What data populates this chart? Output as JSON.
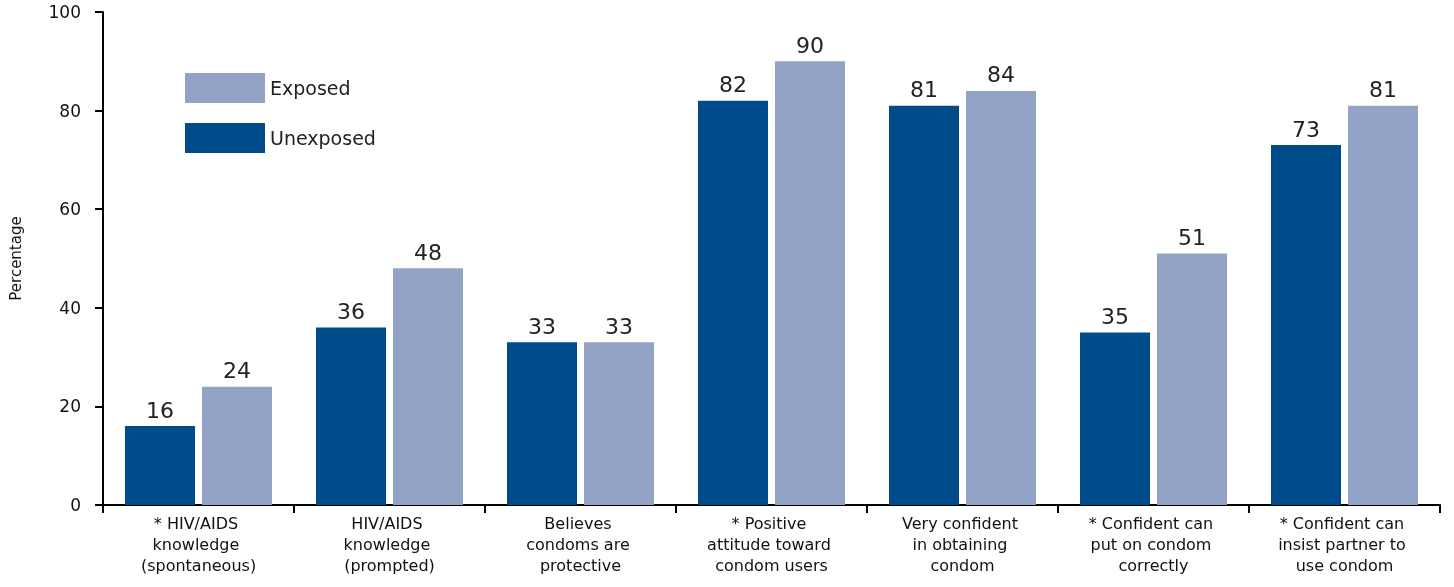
{
  "chart_data": {
    "type": "bar",
    "ylabel": "Percentage",
    "categories": [
      "* HIV/AIDS knowledge (spontaneous)",
      "HIV/AIDS knowledge (prompted)",
      "Believes condoms are protective",
      "* Positive attitude toward condom users",
      "Very confident in obtaining condom",
      "* Confident can put on condom correctly",
      "* Confident can insist partner to use condom"
    ],
    "series": [
      {
        "name": "Unexposed",
        "color": "#004c8a",
        "values": [
          16,
          36,
          33,
          82,
          81,
          35,
          73
        ]
      },
      {
        "name": "Exposed",
        "color": "#93a3c6",
        "values": [
          24,
          48,
          33,
          90,
          84,
          51,
          81
        ]
      }
    ],
    "ylim": [
      0,
      100
    ],
    "yticks": [
      0,
      20,
      40,
      60,
      80,
      100
    ],
    "grid": false,
    "legend": "top left",
    "data_labels": true
  }
}
